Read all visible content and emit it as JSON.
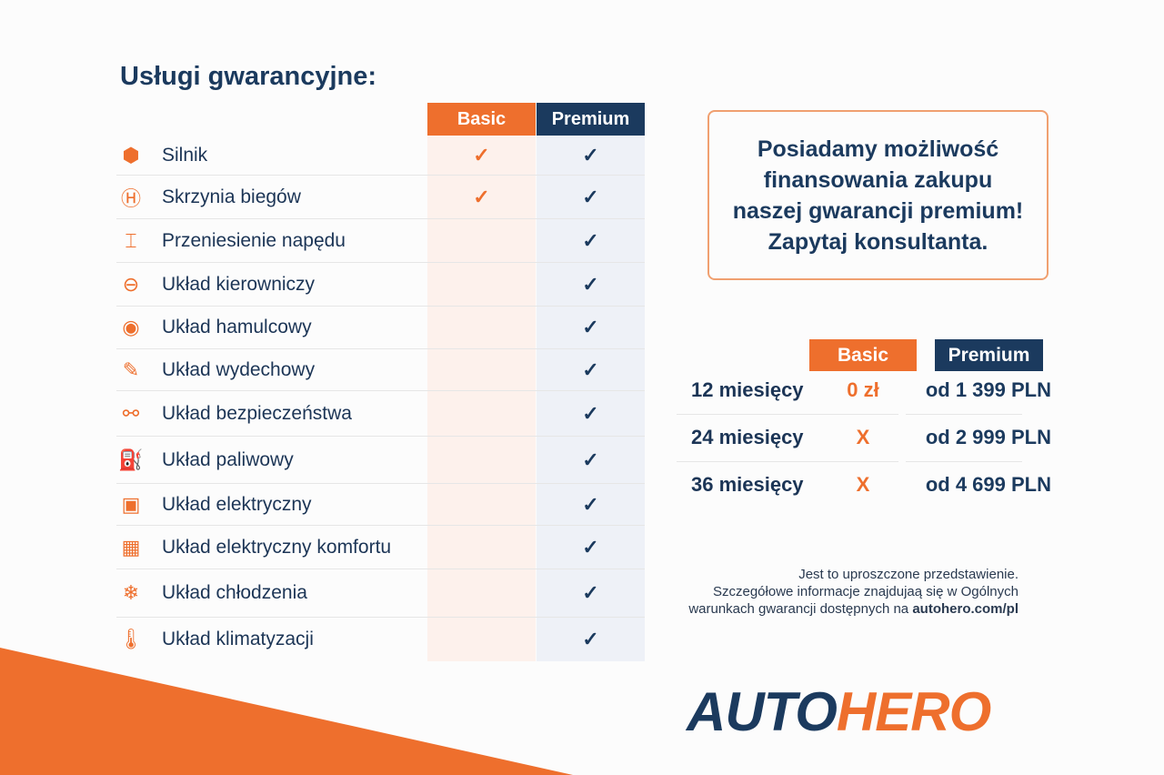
{
  "title": "Usługi gwarancyjne:",
  "colors": {
    "orange": "#ee6f2d",
    "navy": "#1b3a5e"
  },
  "coverage": {
    "headers": {
      "basic": "Basic",
      "premium": "Premium"
    },
    "rows": [
      {
        "icon": "engine-icon",
        "glyph": "⬢",
        "label": "Silnik",
        "basic": "✓",
        "premium": "✓"
      },
      {
        "icon": "gearbox-icon",
        "glyph": "Ⓗ",
        "label": "Skrzynia biegów",
        "basic": "✓",
        "premium": "✓"
      },
      {
        "icon": "drivetrain-icon",
        "glyph": "⌶",
        "label": "Przeniesienie napędu",
        "basic": "",
        "premium": "✓"
      },
      {
        "icon": "steering-wheel-icon",
        "glyph": "⊖",
        "label": "Układ kierowniczy",
        "basic": "",
        "premium": "✓"
      },
      {
        "icon": "brake-icon",
        "glyph": "◉",
        "label": "Układ hamulcowy",
        "basic": "",
        "premium": "✓"
      },
      {
        "icon": "exhaust-icon",
        "glyph": "✎",
        "label": "Układ wydechowy",
        "basic": "",
        "premium": "✓"
      },
      {
        "icon": "seatbelt-icon",
        "glyph": "⚯",
        "label": "Układ bezpieczeństwa",
        "basic": "",
        "premium": "✓"
      },
      {
        "icon": "fuel-icon",
        "glyph": "⛽",
        "label": "Układ paliwowy",
        "basic": "",
        "premium": "✓"
      },
      {
        "icon": "battery-icon",
        "glyph": "▣",
        "label": "Układ elektryczny",
        "basic": "",
        "premium": "✓"
      },
      {
        "icon": "chip-icon",
        "glyph": "▦",
        "label": "Układ elektryczny komfortu",
        "basic": "",
        "premium": "✓"
      },
      {
        "icon": "snowflake-icon",
        "glyph": "❄",
        "label": "Układ chłodzenia",
        "basic": "",
        "premium": "✓"
      },
      {
        "icon": "thermometer-icon",
        "glyph": "🌡",
        "label": "Układ klimatyzacji",
        "basic": "",
        "premium": "✓"
      }
    ]
  },
  "promo": "Posiadamy możliwość finansowania zakupu naszej gwarancji premium! Zapytaj konsultanta.",
  "pricing": {
    "headers": {
      "basic": "Basic",
      "premium": "Premium"
    },
    "rows": [
      {
        "period": "12 miesięcy",
        "basic": "0 zł",
        "premium": "od 1 399 PLN"
      },
      {
        "period": "24 miesięcy",
        "basic": "X",
        "premium": "od 2 999 PLN"
      },
      {
        "period": "36 miesięcy",
        "basic": "X",
        "premium": "od 4 699 PLN"
      }
    ]
  },
  "note": {
    "line1": "Jest to uproszczone przedstawienie.",
    "line2": "Szczegółowe informacje znajdujaą się w Ogólnych",
    "line3": "warunkach gwarancji dostępnych na ",
    "link": "autohero.com/pl"
  },
  "logo": {
    "part1": "AUTO",
    "part2": "HERO"
  }
}
